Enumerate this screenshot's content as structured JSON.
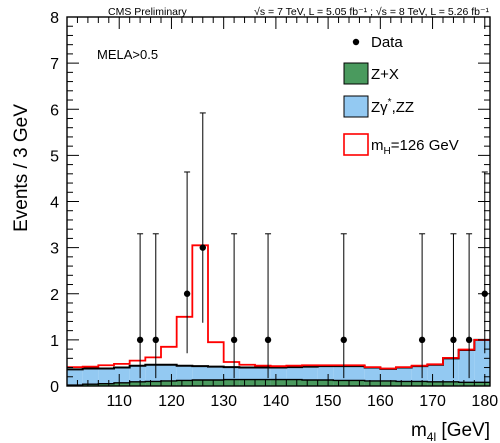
{
  "chart_data": {
    "type": "bar",
    "header_left": "CMS Preliminary",
    "header_right": "√s = 7 TeV, L = 5.05 fb⁻¹ ; √s = 8 TeV, L = 5.26 fb⁻¹",
    "cut_label": "MELA>0.5",
    "xlabel": "m",
    "xlabel_sub": "4l",
    "xlabel_unit": " [GeV]",
    "ylabel": "Events / 3 GeV",
    "xlim": [
      100,
      181
    ],
    "ylim": [
      0,
      8
    ],
    "x_ticks": [
      110,
      120,
      130,
      140,
      150,
      160,
      170,
      180
    ],
    "y_ticks": [
      0,
      1,
      2,
      3,
      4,
      5,
      6,
      7,
      8
    ],
    "bin_width": 3,
    "bin_edges": [
      100,
      103,
      106,
      109,
      112,
      115,
      118,
      121,
      124,
      127,
      130,
      133,
      136,
      139,
      142,
      145,
      148,
      151,
      154,
      157,
      160,
      163,
      166,
      169,
      172,
      175,
      178,
      181
    ],
    "legend": {
      "data": "Data",
      "zx": "Z+X",
      "zz_main": "Zγ",
      "zz_sup": "*",
      "zz_tail": ",ZZ",
      "signal_main": "m",
      "signal_sub": "H",
      "signal_tail": "=126 GeV"
    },
    "colors": {
      "zx": "#4a9a5e",
      "zz": "#93c9f2",
      "signal": "#ff0000",
      "data": "#000000"
    },
    "series": [
      {
        "name": "Z+X",
        "values": [
          0.02,
          0.04,
          0.05,
          0.07,
          0.09,
          0.1,
          0.11,
          0.12,
          0.13,
          0.13,
          0.14,
          0.14,
          0.14,
          0.14,
          0.14,
          0.13,
          0.13,
          0.12,
          0.12,
          0.11,
          0.11,
          0.1,
          0.1,
          0.09,
          0.09,
          0.08,
          0.08
        ]
      },
      {
        "name": "Zγ*,ZZ",
        "values": [
          0.36,
          0.38,
          0.38,
          0.4,
          0.44,
          0.46,
          0.46,
          0.44,
          0.43,
          0.42,
          0.41,
          0.4,
          0.4,
          0.4,
          0.41,
          0.42,
          0.43,
          0.43,
          0.43,
          0.4,
          0.37,
          0.4,
          0.43,
          0.46,
          0.6,
          0.78,
          1.0
        ]
      },
      {
        "name": "mH=126 GeV",
        "values": [
          0.41,
          0.42,
          0.45,
          0.48,
          0.55,
          0.62,
          0.85,
          1.5,
          3.05,
          0.95,
          0.52,
          0.46,
          0.44,
          0.43,
          0.44,
          0.45,
          0.45,
          0.45,
          0.45,
          0.41,
          0.38,
          0.41,
          0.44,
          0.47,
          0.61,
          0.79,
          1.0
        ]
      }
    ],
    "data_points": [
      {
        "x": 114,
        "y": 1,
        "err_lo": 0.83,
        "err_hi": 2.3
      },
      {
        "x": 117,
        "y": 1,
        "err_lo": 0.83,
        "err_hi": 2.3
      },
      {
        "x": 123,
        "y": 2,
        "err_lo": 1.29,
        "err_hi": 2.64
      },
      {
        "x": 126,
        "y": 3,
        "err_lo": 1.63,
        "err_hi": 2.92
      },
      {
        "x": 132,
        "y": 1,
        "err_lo": 0.83,
        "err_hi": 2.3
      },
      {
        "x": 138.5,
        "y": 1,
        "err_lo": 0.83,
        "err_hi": 2.3
      },
      {
        "x": 153,
        "y": 1,
        "err_lo": 0.83,
        "err_hi": 2.3
      },
      {
        "x": 168,
        "y": 1,
        "err_lo": 0.83,
        "err_hi": 2.3
      },
      {
        "x": 174,
        "y": 1,
        "err_lo": 0.83,
        "err_hi": 2.3
      },
      {
        "x": 177,
        "y": 1,
        "err_lo": 0.83,
        "err_hi": 2.3
      },
      {
        "x": 180,
        "y": 2,
        "err_lo": 1.29,
        "err_hi": 2.64
      }
    ]
  }
}
